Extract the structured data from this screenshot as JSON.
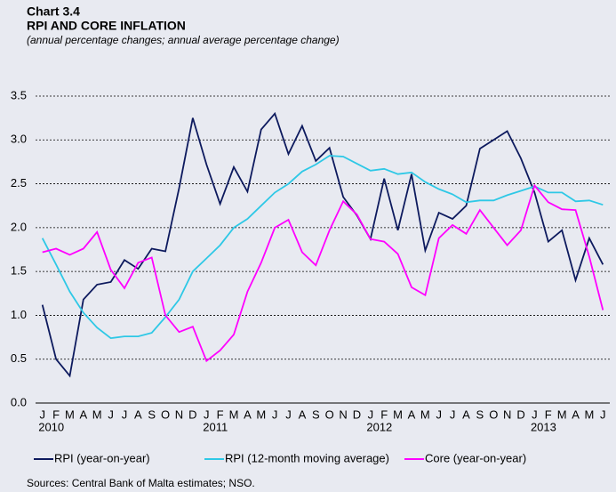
{
  "chart_data": {
    "type": "line",
    "label": "Chart 3.4",
    "title": "RPI AND CORE INFLATION",
    "subtitle": "(annual percentage changes; annual average percentage change)",
    "source": "Sources: Central Bank of Malta estimates; NSO.",
    "categories": [
      "J",
      "F",
      "M",
      "A",
      "M",
      "J",
      "J",
      "A",
      "S",
      "O",
      "N",
      "D",
      "J",
      "F",
      "M",
      "A",
      "M",
      "J",
      "J",
      "A",
      "S",
      "O",
      "N",
      "D",
      "J",
      "F",
      "M",
      "A",
      "M",
      "J",
      "J",
      "A",
      "S",
      "O",
      "N",
      "D",
      "J",
      "F",
      "M",
      "A",
      "M",
      "J"
    ],
    "years": [
      "2010",
      "2011",
      "2012",
      "2013"
    ],
    "ylim": [
      0,
      3.5
    ],
    "yticks": [
      {
        "value": 0,
        "label": "0.0"
      },
      0.5,
      {
        "value": 1,
        "label": "1.0"
      },
      1.5,
      {
        "value": 2,
        "label": "2.0"
      },
      2.5,
      {
        "value": 3,
        "label": "3.0"
      },
      3.5
    ],
    "grid": true,
    "series": [
      {
        "name": "RPI (year-on-year)",
        "color": "#0d1a5e",
        "values": [
          1.12,
          0.5,
          0.31,
          1.18,
          1.35,
          1.38,
          1.63,
          1.53,
          1.76,
          1.73,
          2.45,
          3.25,
          2.72,
          2.27,
          2.69,
          2.41,
          3.12,
          3.3,
          2.84,
          3.16,
          2.76,
          2.91,
          2.35,
          2.14,
          1.87,
          2.56,
          1.97,
          2.61,
          1.74,
          2.17,
          2.1,
          2.25,
          2.9,
          3.0,
          3.1,
          2.79,
          2.4,
          1.84,
          1.97,
          1.4,
          1.88,
          1.58
        ]
      },
      {
        "name": "RPI (12-month moving average)",
        "color": "#2ec8e6",
        "values": [
          1.88,
          1.58,
          1.27,
          1.03,
          0.86,
          0.74,
          0.76,
          0.76,
          0.8,
          0.98,
          1.18,
          1.5,
          1.65,
          1.8,
          2.0,
          2.1,
          2.25,
          2.4,
          2.5,
          2.64,
          2.72,
          2.82,
          2.81,
          2.73,
          2.65,
          2.67,
          2.61,
          2.63,
          2.52,
          2.44,
          2.38,
          2.29,
          2.31,
          2.31,
          2.37,
          2.42,
          2.47,
          2.4,
          2.4,
          2.3,
          2.31,
          2.26
        ]
      },
      {
        "name": "Core (year-on-year)",
        "color": "#ff00ff",
        "values": [
          1.72,
          1.76,
          1.69,
          1.76,
          1.95,
          1.52,
          1.31,
          1.6,
          1.66,
          1.0,
          0.81,
          0.87,
          0.48,
          0.6,
          0.78,
          1.27,
          1.6,
          2.0,
          2.09,
          1.72,
          1.57,
          1.97,
          2.3,
          2.15,
          1.87,
          1.84,
          1.7,
          1.32,
          1.23,
          1.88,
          2.03,
          1.93,
          2.2,
          2.0,
          1.8,
          1.97,
          2.48,
          2.29,
          2.21,
          2.2,
          1.67,
          1.06
        ]
      }
    ]
  }
}
